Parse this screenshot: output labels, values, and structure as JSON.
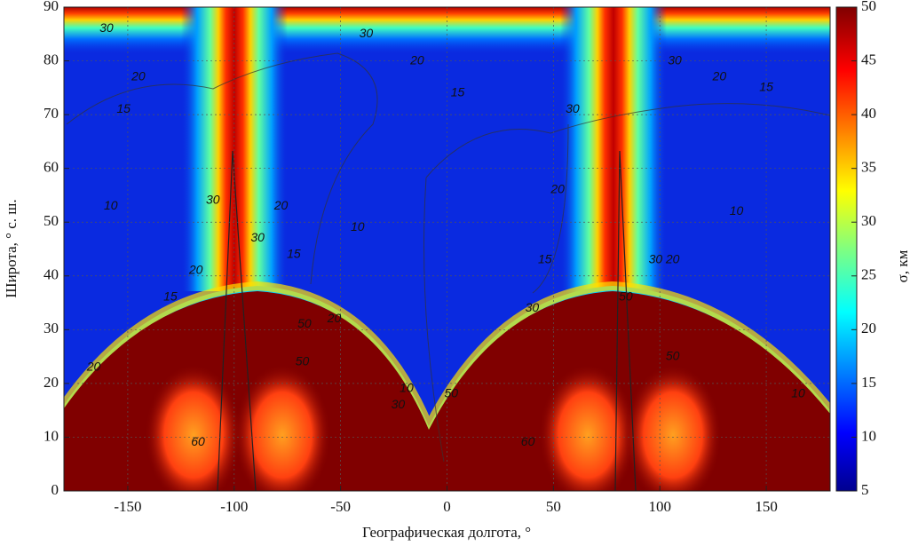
{
  "chart_data": {
    "type": "heatmap",
    "xlabel": "Географическая долгота, °",
    "ylabel": "Широта, ° с. ш.",
    "colorbar_label": "σ, км",
    "xlim": [
      -180,
      180
    ],
    "xticks": [
      -150,
      -100,
      -50,
      0,
      50,
      100,
      150
    ],
    "ylim": [
      0,
      90
    ],
    "yticks": [
      0,
      10,
      20,
      30,
      40,
      50,
      60,
      70,
      80,
      90
    ],
    "clim": [
      5,
      50
    ],
    "cticks": [
      5,
      10,
      15,
      20,
      25,
      30,
      35,
      40,
      45,
      50
    ],
    "grid": true,
    "contour_labels": [
      {
        "value": 30,
        "x": -160,
        "y": 86
      },
      {
        "value": 30,
        "x": -38,
        "y": 85
      },
      {
        "value": 20,
        "x": -14,
        "y": 80
      },
      {
        "value": 15,
        "x": 5,
        "y": 74
      },
      {
        "value": 30,
        "x": 107,
        "y": 80
      },
      {
        "value": 20,
        "x": 128,
        "y": 77
      },
      {
        "value": 15,
        "x": 150,
        "y": 75
      },
      {
        "value": 20,
        "x": -145,
        "y": 77
      },
      {
        "value": 15,
        "x": -152,
        "y": 71
      },
      {
        "value": 10,
        "x": -158,
        "y": 53
      },
      {
        "value": 30,
        "x": -110,
        "y": 54
      },
      {
        "value": 20,
        "x": -78,
        "y": 53
      },
      {
        "value": 30,
        "x": -89,
        "y": 47
      },
      {
        "value": 15,
        "x": -72,
        "y": 44
      },
      {
        "value": 10,
        "x": -42,
        "y": 49
      },
      {
        "value": 20,
        "x": -118,
        "y": 41
      },
      {
        "value": 15,
        "x": -130,
        "y": 36
      },
      {
        "value": 50,
        "x": -67,
        "y": 31
      },
      {
        "value": 20,
        "x": -53,
        "y": 32
      },
      {
        "value": 50,
        "x": -68,
        "y": 24
      },
      {
        "value": 60,
        "x": -117,
        "y": 9
      },
      {
        "value": 30,
        "x": 40,
        "y": 34
      },
      {
        "value": 20,
        "x": 52,
        "y": 56
      },
      {
        "value": 15,
        "x": 46,
        "y": 43
      },
      {
        "value": 30,
        "x": 59,
        "y": 71
      },
      {
        "value": 30,
        "x": 98,
        "y": 43
      },
      {
        "value": 20,
        "x": 106,
        "y": 43
      },
      {
        "value": 50,
        "x": 84,
        "y": 36
      },
      {
        "value": 50,
        "x": 106,
        "y": 25
      },
      {
        "value": 60,
        "x": 38,
        "y": 9
      },
      {
        "value": 10,
        "x": -19,
        "y": 19
      },
      {
        "value": 30,
        "x": -23,
        "y": 16
      },
      {
        "value": 50,
        "x": 2,
        "y": 18
      },
      {
        "value": 10,
        "x": 165,
        "y": 18
      },
      {
        "value": 10,
        "x": 136,
        "y": 52
      },
      {
        "value": 20,
        "x": -166,
        "y": 23
      }
    ]
  }
}
